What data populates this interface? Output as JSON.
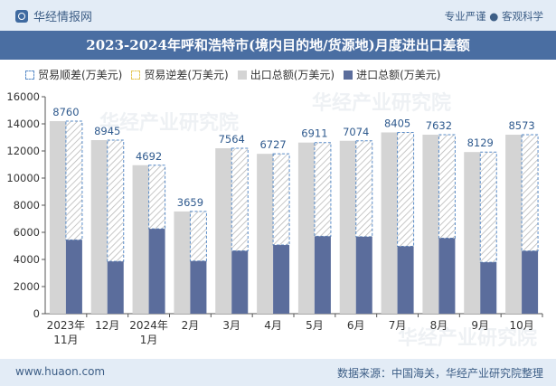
{
  "header": {
    "brand": "华经情报网",
    "slogan": "专业严谨 ● 客观科学"
  },
  "watermark": "华经产业研究院",
  "footer": {
    "website": "www.huaon.com",
    "source": "数据来源：中国海关，华经产业研究院整理"
  },
  "chart_data": {
    "type": "bar",
    "title": "2023-2024年呼和浩特市(境内目的地/货源地)月度进出口差额",
    "legend": [
      "贸易顺差(万美元)",
      "贸易逆差(万美元)",
      "出口总额(万美元)",
      "进口总额(万美元)"
    ],
    "legend_position": "top-left",
    "categories": [
      [
        "2023年",
        "11月"
      ],
      [
        "12月"
      ],
      [
        "2024年",
        "1月"
      ],
      [
        "2月"
      ],
      [
        "3月"
      ],
      [
        "4月"
      ],
      [
        "5月"
      ],
      [
        "6月"
      ],
      [
        "7月"
      ],
      [
        "8月"
      ],
      [
        "9月"
      ],
      [
        "10月"
      ]
    ],
    "series": [
      {
        "name": "出口总额(万美元)",
        "values": [
          14200,
          12800,
          10950,
          7540,
          12200,
          11790,
          12620,
          12750,
          13370,
          13200,
          11920,
          13200
        ]
      },
      {
        "name": "进口总额(万美元)",
        "values": [
          5440,
          3855,
          6258,
          3881,
          4636,
          5063,
          5709,
          5676,
          4965,
          5568,
          3791,
          4627
        ]
      },
      {
        "name": "贸易顺差(万美元)",
        "values": [
          8760,
          8945,
          4692,
          3659,
          7564,
          6727,
          6911,
          7074,
          8405,
          7632,
          8129,
          8573
        ]
      }
    ],
    "yticks": [
      0,
      2000,
      4000,
      6000,
      8000,
      10000,
      12000,
      14000,
      16000
    ],
    "ylim": [
      0,
      16000
    ],
    "grid": false,
    "colors": {
      "export": "#d4d4d4",
      "import": "#5b6d9c",
      "surplus_border": "#5a8cc8",
      "surplus_text": "#2f5a8e"
    }
  }
}
